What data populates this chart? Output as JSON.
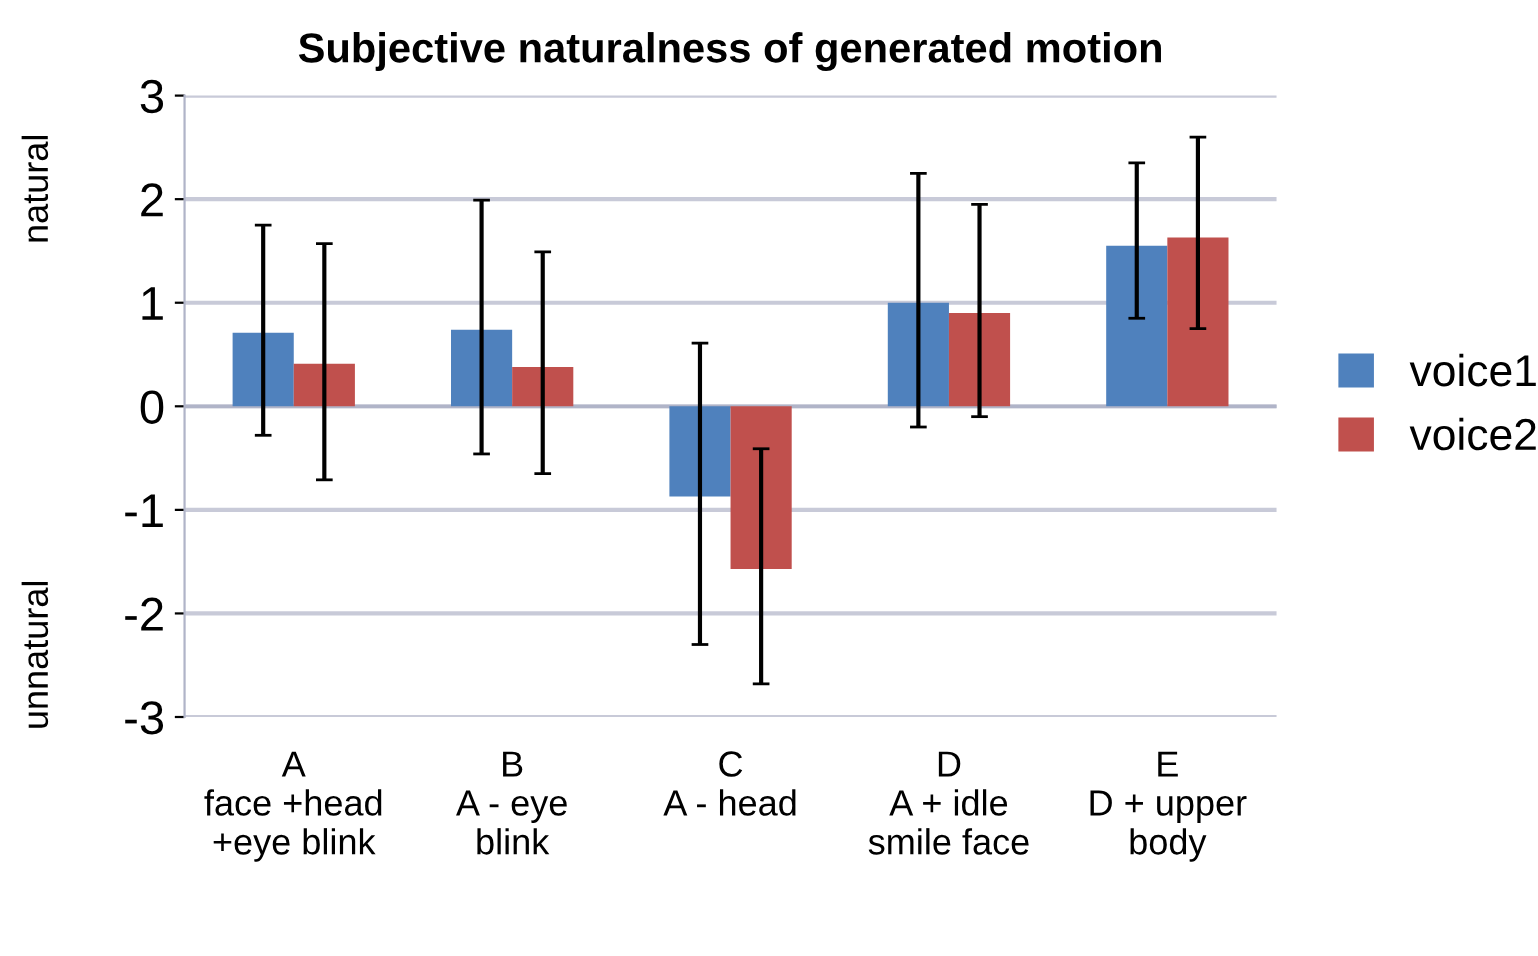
{
  "chart_data": {
    "type": "bar",
    "title": "Subjective naturalness of generated motion",
    "categories": [
      "A\nface +head\n+eye blink",
      "B\nA - eye\nblink",
      "C\nA - head",
      "D\nA + idle\nsmile face",
      "E\nD + upper\nbody"
    ],
    "series": [
      {
        "name": "voice1",
        "color": "#4f81bd",
        "values": [
          0.71,
          0.74,
          -0.87,
          1.0,
          1.55
        ],
        "errors": [
          [
            -0.28,
            1.75
          ],
          [
            -0.46,
            1.99
          ],
          [
            -2.3,
            0.61
          ],
          [
            -0.2,
            2.25
          ],
          [
            0.85,
            2.35
          ]
        ]
      },
      {
        "name": "voice2",
        "color": "#c0504d",
        "values": [
          0.41,
          0.38,
          -1.57,
          0.9,
          1.63
        ],
        "errors": [
          [
            -0.71,
            1.57
          ],
          [
            -0.65,
            1.49
          ],
          [
            -2.68,
            -0.41
          ],
          [
            -0.1,
            1.95
          ],
          [
            0.75,
            2.6
          ]
        ]
      }
    ],
    "ylim": [
      -3,
      3
    ],
    "yticks": [
      -3,
      -2,
      -1,
      0,
      1,
      2,
      3
    ],
    "grid": "y",
    "legend": "right",
    "annotations": [
      "natural",
      "unnatural"
    ]
  }
}
